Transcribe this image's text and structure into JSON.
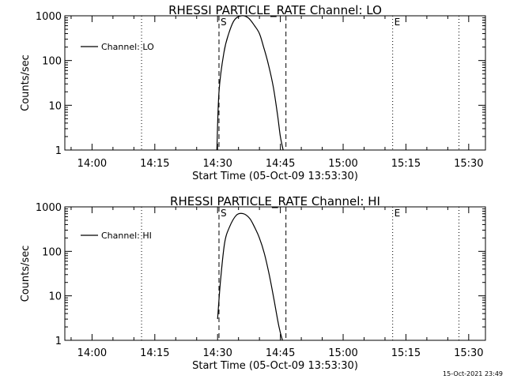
{
  "footer": {
    "timestamp": "15-Oct-2021 23:49"
  },
  "chart_data": [
    {
      "type": "line",
      "title": "RHESSI PARTICLE_RATE Channel: LO",
      "xlabel": "Start Time (05-Oct-09 13:53:30)",
      "ylabel": "Counts/sec",
      "xlim": [
        "13:53:30",
        "15:34:00"
      ],
      "ylim": [
        1,
        1000
      ],
      "yscale": "log",
      "x_ticks": [
        "14:00",
        "14:15",
        "14:30",
        "14:45",
        "15:00",
        "15:15",
        "15:30"
      ],
      "y_ticks": [
        "1",
        "10",
        "100",
        "1000"
      ],
      "legend": {
        "position": "top-left",
        "entries": [
          "Channel: LO"
        ]
      },
      "markers": [
        {
          "label": "S",
          "time": "14:30:20",
          "style": "dashed"
        },
        {
          "label": "",
          "time": "14:46:20",
          "style": "dashed"
        },
        {
          "label": "",
          "time": "14:11:50",
          "style": "dotted"
        },
        {
          "label": "E",
          "time": "15:11:50",
          "style": "dotted"
        },
        {
          "label": "",
          "time": "15:27:40",
          "style": "dotted"
        }
      ],
      "series": [
        {
          "name": "Channel: LO",
          "x": [
            "14:29:50",
            "14:30:20",
            "14:31:30",
            "14:32:40",
            "14:34:00",
            "14:35:40",
            "14:37:20",
            "14:38:50",
            "14:40:00",
            "14:41:00",
            "14:42:10",
            "14:43:20",
            "14:44:20",
            "14:45:00",
            "14:45:40"
          ],
          "y": [
            1,
            20,
            150,
            400,
            800,
            1000,
            900,
            600,
            400,
            200,
            80,
            25,
            6,
            2,
            1
          ]
        }
      ]
    },
    {
      "type": "line",
      "title": "RHESSI PARTICLE_RATE Channel: HI",
      "xlabel": "Start Time (05-Oct-09 13:53:30)",
      "ylabel": "Counts/sec",
      "xlim": [
        "13:53:30",
        "15:34:00"
      ],
      "ylim": [
        1,
        1000
      ],
      "yscale": "log",
      "x_ticks": [
        "14:00",
        "14:15",
        "14:30",
        "14:45",
        "15:00",
        "15:15",
        "15:30"
      ],
      "y_ticks": [
        "1",
        "10",
        "100",
        "1000"
      ],
      "legend": {
        "position": "top-left",
        "entries": [
          "Channel: HI"
        ]
      },
      "markers": [
        {
          "label": "S",
          "time": "14:30:20",
          "style": "dashed"
        },
        {
          "label": "",
          "time": "14:46:20",
          "style": "dashed"
        },
        {
          "label": "",
          "time": "14:11:50",
          "style": "dotted"
        },
        {
          "label": "E",
          "time": "15:11:50",
          "style": "dotted"
        },
        {
          "label": "",
          "time": "15:27:40",
          "style": "dotted"
        }
      ],
      "series": [
        {
          "name": "Channel: HI",
          "x": [
            "14:30:00",
            "14:30:40",
            "14:31:40",
            "14:32:50",
            "14:34:30",
            "14:36:10",
            "14:37:40",
            "14:38:50",
            "14:40:00",
            "14:41:10",
            "14:42:20",
            "14:43:30",
            "14:44:40",
            "14:45:30"
          ],
          "y": [
            3,
            20,
            150,
            350,
            650,
            700,
            550,
            350,
            200,
            90,
            30,
            8,
            2,
            1
          ]
        }
      ]
    }
  ]
}
